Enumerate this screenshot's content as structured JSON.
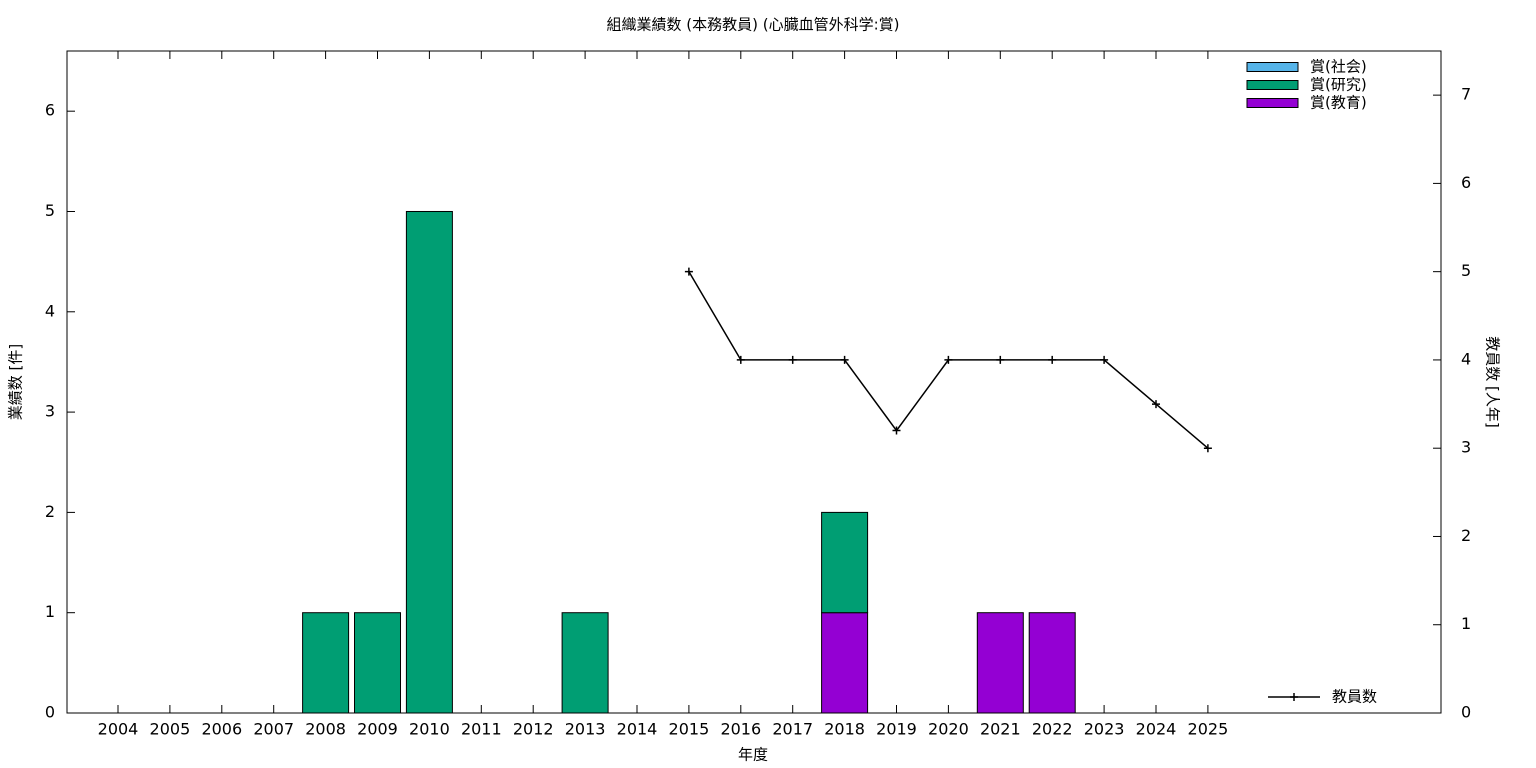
{
  "chart_data": {
    "type": "bar",
    "title": "組織業績数 (本務教員) (心臓血管外科学:賞)",
    "x_label": "年度",
    "y_label": "業績数 [件]",
    "y2_label": "教員数 [人年]",
    "categories": [
      "2004",
      "2005",
      "2006",
      "2007",
      "2008",
      "2009",
      "2010",
      "2011",
      "2012",
      "2013",
      "2014",
      "2015",
      "2016",
      "2017",
      "2018",
      "2019",
      "2020",
      "2021",
      "2022",
      "2023",
      "2024",
      "2025"
    ],
    "stacked": true,
    "series": [
      {
        "name": "賞(社会)",
        "color": "#56b4e9",
        "values": [
          0,
          0,
          0,
          0,
          0,
          0,
          0,
          0,
          0,
          0,
          0,
          0,
          0,
          0,
          0,
          0,
          0,
          0,
          0,
          0,
          0,
          0
        ]
      },
      {
        "name": "賞(研究)",
        "color": "#009e73",
        "values": [
          0,
          0,
          0,
          0,
          1,
          1,
          5,
          0,
          0,
          1,
          0,
          0,
          0,
          0,
          1,
          0,
          0,
          0,
          0,
          0,
          0,
          0
        ]
      },
      {
        "name": "賞(教育)",
        "color": "#9400d3",
        "values": [
          0,
          0,
          0,
          0,
          0,
          0,
          0,
          0,
          0,
          0,
          0,
          0,
          0,
          0,
          1,
          0,
          0,
          1,
          1,
          0,
          0,
          0
        ]
      },
      {
        "name": "教員数",
        "type": "line",
        "axis": "y2",
        "color": "#000000",
        "values": [
          null,
          null,
          null,
          null,
          null,
          null,
          null,
          null,
          null,
          null,
          null,
          5,
          4,
          4,
          4,
          3.2,
          4,
          4,
          4,
          4,
          3.5,
          3
        ]
      }
    ],
    "ylim": [
      0,
      6.6
    ],
    "yticks": [
      0,
      1,
      2,
      3,
      4,
      5,
      6
    ],
    "y2lim": [
      0,
      7.5
    ],
    "y2ticks": [
      0,
      1,
      2,
      3,
      4,
      5,
      6,
      7
    ],
    "legend": "top-right"
  }
}
